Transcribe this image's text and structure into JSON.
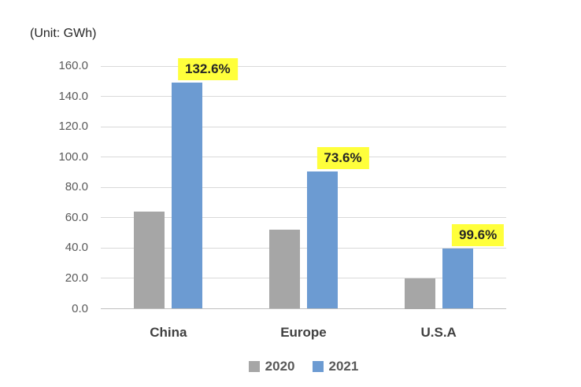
{
  "unit_label": "(Unit: GWh)",
  "chart_data": {
    "type": "bar",
    "title": "",
    "unit": "GWh",
    "categories": [
      "China",
      "Europe",
      "U.S.A"
    ],
    "series": [
      {
        "name": "2020",
        "color": "#a6a6a6",
        "values": [
          64.2,
          52.0,
          20.0
        ]
      },
      {
        "name": "2021",
        "color": "#6c9bd2",
        "values": [
          149.3,
          90.3,
          39.9
        ]
      }
    ],
    "growth_labels": [
      "132.6%",
      "73.6%",
      "99.6%"
    ],
    "growth_label_bg": "#ffff3b",
    "growth_label_text_color": "#262626",
    "xlabel": "",
    "ylabel": "",
    "ylim": [
      0,
      160
    ],
    "ytick_step": 20,
    "ytick_labels": [
      "0.0",
      "20.0",
      "40.0",
      "60.0",
      "80.0",
      "100.0",
      "120.0",
      "140.0",
      "160.0"
    ],
    "grid": true,
    "gridline_color": "#d9d9d9",
    "axis_line_color": "#bfbfbf",
    "legend_position": "bottom",
    "legend_entries": [
      "2020",
      "2021"
    ]
  }
}
